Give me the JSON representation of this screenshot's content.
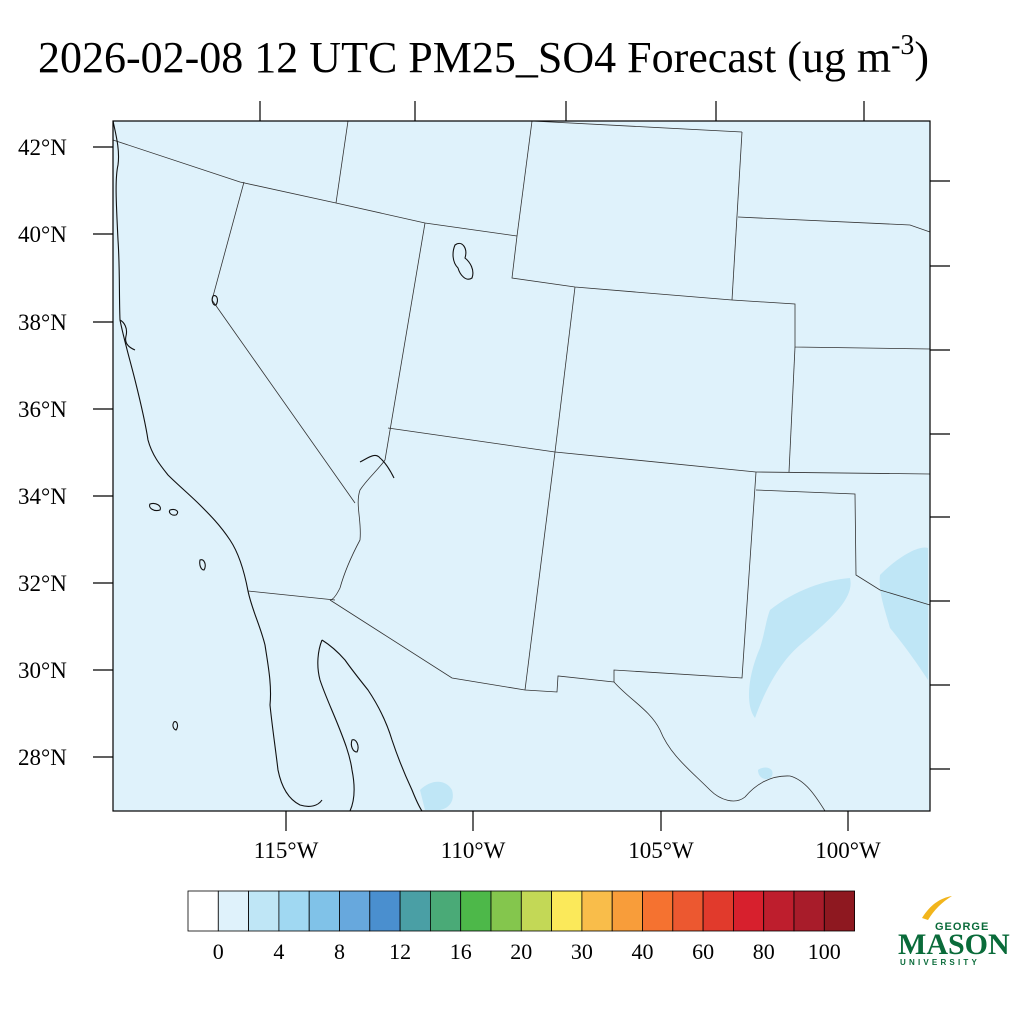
{
  "title": {
    "main": "2026-02-08 12 UTC PM25_SO4 Forecast (ug m",
    "superscript": "-3",
    "close": ")"
  },
  "map": {
    "background_color": "#dff2fb",
    "lat_labels": [
      "42°N",
      "40°N",
      "38°N",
      "36°N",
      "34°N",
      "32°N",
      "30°N",
      "28°N"
    ],
    "lon_labels": [
      "115°W",
      "110°W",
      "105°W",
      "100°W"
    ],
    "lat_range": [
      26.8,
      42.6
    ],
    "lon_range": [
      -119.5,
      -98.0
    ]
  },
  "colorbar": {
    "colors": [
      "#ffffff",
      "#dff2fb",
      "#bfe6f6",
      "#a0d8f2",
      "#80c2e8",
      "#67a8dd",
      "#4a8fcf",
      "#4a9fa5",
      "#4aaa77",
      "#4db849",
      "#84c64d",
      "#c3d856",
      "#fbe95a",
      "#f9bd4a",
      "#f89d3a",
      "#f57230",
      "#ec5830",
      "#e13a2c",
      "#d7202d",
      "#be1e2d",
      "#a81c2a",
      "#8e1820"
    ],
    "labels": [
      "0",
      "4",
      "8",
      "12",
      "16",
      "20",
      "30",
      "40",
      "60",
      "80",
      "100"
    ]
  },
  "logo": {
    "line1": "GEORGE",
    "line2": "MASON",
    "line3": "UNIVERSITY"
  }
}
